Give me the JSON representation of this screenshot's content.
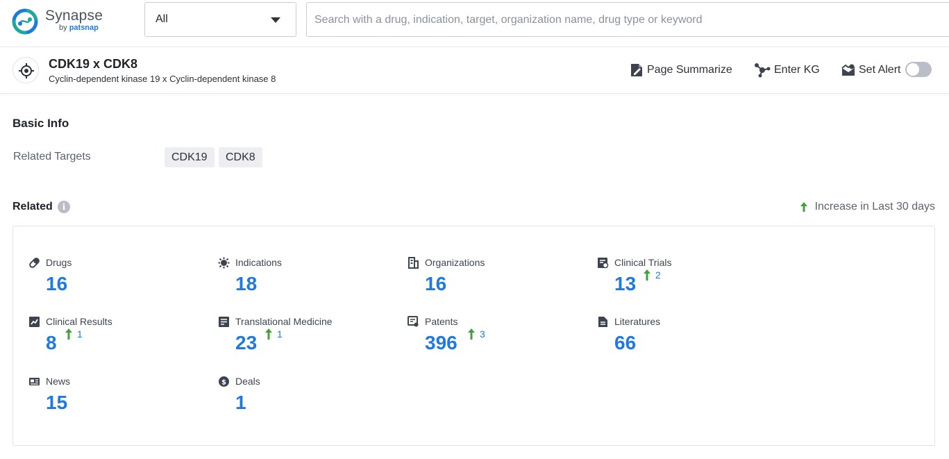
{
  "app": {
    "name": "Synapse",
    "by_prefix": "by",
    "by_brand": "patsnap"
  },
  "search": {
    "type_selected": "All",
    "placeholder": "Search with a drug, indication, target, organization name, drug type or keyword",
    "value": ""
  },
  "entity": {
    "title": "CDK19 x CDK8",
    "subtitle": "Cyclin-dependent kinase 19 x Cyclin-dependent kinase 8",
    "icon": "target-icon"
  },
  "actions": {
    "page_summarize": "Page Summarize",
    "enter_kg": "Enter KG",
    "set_alert": "Set Alert",
    "alert_enabled": false
  },
  "basic_info": {
    "title": "Basic Info",
    "related_targets_label": "Related Targets",
    "related_targets": [
      "CDK19",
      "CDK8"
    ]
  },
  "related": {
    "title": "Related",
    "increase_legend": "Increase in Last 30 days",
    "items": [
      {
        "label": "Drugs",
        "icon": "pill-icon",
        "count": "16",
        "increase": ""
      },
      {
        "label": "Indications",
        "icon": "virus-icon",
        "count": "18",
        "increase": ""
      },
      {
        "label": "Organizations",
        "icon": "building-icon",
        "count": "16",
        "increase": ""
      },
      {
        "label": "Clinical Trials",
        "icon": "clinical-trial-icon",
        "count": "13",
        "increase": "2"
      },
      {
        "label": "Clinical Results",
        "icon": "chart-report-icon",
        "count": "8",
        "increase": "1"
      },
      {
        "label": "Translational Medicine",
        "icon": "translational-icon",
        "count": "23",
        "increase": "1"
      },
      {
        "label": "Patents",
        "icon": "patent-icon",
        "count": "396",
        "increase": "3"
      },
      {
        "label": "Literatures",
        "icon": "document-icon",
        "count": "66",
        "increase": ""
      },
      {
        "label": "News",
        "icon": "newspaper-icon",
        "count": "15",
        "increase": ""
      },
      {
        "label": "Deals",
        "icon": "deal-icon",
        "count": "1",
        "increase": ""
      }
    ]
  },
  "colors": {
    "accent": "#1f7ae0",
    "increase_arrow": "#3fa33a",
    "brand_teal": "#1ba99d"
  }
}
